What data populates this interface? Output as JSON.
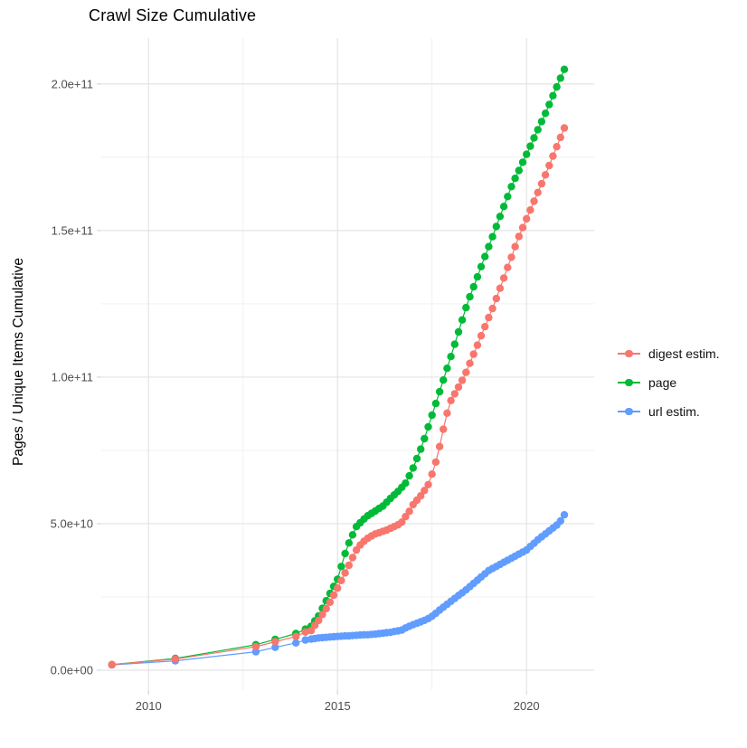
{
  "colors": {
    "grid_major": "#e4e4e4",
    "grid_minor": "#efefef",
    "tick": "#d4d4d4",
    "axis_text": "#4d4d4d",
    "title_text": "#000000",
    "background": "#ffffff"
  },
  "chart_data": {
    "type": "scatter-line",
    "title": "Crawl Size Cumulative",
    "xlabel": "",
    "ylabel": "Pages / Unique Items Cumulative",
    "legend_position": "right",
    "grid": true,
    "x_domain": [
      2008.75,
      2021.79
    ],
    "y_domain": [
      -6.8,
      215.7
    ],
    "y_unit_multiplier": 1000000000.0,
    "x_ticks": {
      "values": [
        2010,
        2015,
        2020
      ],
      "labels": [
        "2010",
        "2015",
        "2020"
      ]
    },
    "x_minor": [
      2012.5,
      2017.5
    ],
    "y_ticks": {
      "values": [
        0,
        50,
        100,
        150,
        200
      ],
      "labels": [
        "0.0e+00",
        "5.0e+10",
        "1.0e+11",
        "1.5e+11",
        "2.0e+11"
      ]
    },
    "y_minor": [
      25,
      75,
      125,
      175
    ],
    "series": [
      {
        "name": "digest estim.",
        "color": "#F8766D",
        "points": [
          [
            2009.03,
            1.9
          ],
          [
            2010.71,
            3.8
          ],
          [
            2012.84,
            8.0
          ],
          [
            2013.35,
            9.7
          ],
          [
            2013.9,
            11.5
          ],
          [
            2014.15,
            13.0
          ],
          [
            2014.3,
            13.5
          ],
          [
            2014.4,
            15.3
          ],
          [
            2014.5,
            17
          ],
          [
            2014.6,
            19
          ],
          [
            2014.7,
            21
          ],
          [
            2014.8,
            23.2
          ],
          [
            2014.9,
            25.6
          ],
          [
            2015.0,
            28
          ],
          [
            2015.1,
            30.6
          ],
          [
            2015.2,
            33.2
          ],
          [
            2015.3,
            35.8
          ],
          [
            2015.4,
            38.4
          ],
          [
            2015.5,
            41
          ],
          [
            2015.6,
            42.7
          ],
          [
            2015.7,
            44
          ],
          [
            2015.8,
            45
          ],
          [
            2015.9,
            45.8
          ],
          [
            2016.0,
            46.5
          ],
          [
            2016.1,
            46.9
          ],
          [
            2016.2,
            47.4
          ],
          [
            2016.3,
            47.8
          ],
          [
            2016.4,
            48.4
          ],
          [
            2016.5,
            49
          ],
          [
            2016.6,
            49.6
          ],
          [
            2016.7,
            50.5
          ],
          [
            2016.8,
            52.4
          ],
          [
            2016.9,
            54.2
          ],
          [
            2017.0,
            56.5
          ],
          [
            2017.1,
            58
          ],
          [
            2017.2,
            59.5
          ],
          [
            2017.3,
            61.3
          ],
          [
            2017.4,
            63.3
          ],
          [
            2017.5,
            66.9
          ],
          [
            2017.6,
            71
          ],
          [
            2017.7,
            76.3
          ],
          [
            2017.8,
            82.2
          ],
          [
            2017.9,
            87.7
          ],
          [
            2018.0,
            92
          ],
          [
            2018.1,
            94.3
          ],
          [
            2018.2,
            96.6
          ],
          [
            2018.3,
            98.9
          ],
          [
            2018.4,
            101.6
          ],
          [
            2018.5,
            104.7
          ],
          [
            2018.6,
            107.8
          ],
          [
            2018.7,
            110.9
          ],
          [
            2018.8,
            114.1
          ],
          [
            2018.9,
            117.2
          ],
          [
            2019.0,
            120.3
          ],
          [
            2019.1,
            123.4
          ],
          [
            2019.2,
            126.8
          ],
          [
            2019.3,
            130.3
          ],
          [
            2019.4,
            133.8
          ],
          [
            2019.5,
            137.4
          ],
          [
            2019.6,
            140.9
          ],
          [
            2019.7,
            144.5
          ],
          [
            2019.8,
            148
          ],
          [
            2019.9,
            151
          ],
          [
            2020.0,
            154
          ],
          [
            2020.1,
            157
          ],
          [
            2020.2,
            160
          ],
          [
            2020.3,
            163
          ],
          [
            2020.4,
            166
          ],
          [
            2020.5,
            169
          ],
          [
            2020.6,
            172.2
          ],
          [
            2020.7,
            175.4
          ],
          [
            2020.8,
            178.6
          ],
          [
            2020.9,
            181.8
          ],
          [
            2021.0,
            185
          ]
        ]
      },
      {
        "name": "page",
        "color": "#00BA38",
        "points": [
          [
            2009.03,
            1.9
          ],
          [
            2010.71,
            4.0
          ],
          [
            2012.84,
            8.7
          ],
          [
            2013.35,
            10.5
          ],
          [
            2013.9,
            12.5
          ],
          [
            2014.15,
            14.0
          ],
          [
            2014.3,
            15
          ],
          [
            2014.4,
            16.8
          ],
          [
            2014.5,
            18.5
          ],
          [
            2014.6,
            21.1
          ],
          [
            2014.7,
            23.7
          ],
          [
            2014.8,
            26.2
          ],
          [
            2014.9,
            28.6
          ],
          [
            2015.0,
            31
          ],
          [
            2015.1,
            35.4
          ],
          [
            2015.2,
            39.8
          ],
          [
            2015.3,
            43.4
          ],
          [
            2015.4,
            46.2
          ],
          [
            2015.5,
            49
          ],
          [
            2015.6,
            50.3
          ],
          [
            2015.7,
            51.6
          ],
          [
            2015.8,
            52.7
          ],
          [
            2015.9,
            53.5
          ],
          [
            2016.0,
            54.3
          ],
          [
            2016.1,
            55.2
          ],
          [
            2016.2,
            56
          ],
          [
            2016.3,
            57.3
          ],
          [
            2016.4,
            58.6
          ],
          [
            2016.5,
            59.8
          ],
          [
            2016.6,
            61
          ],
          [
            2016.7,
            62.4
          ],
          [
            2016.8,
            63.8
          ],
          [
            2016.9,
            66.3
          ],
          [
            2017.0,
            69
          ],
          [
            2017.1,
            72.2
          ],
          [
            2017.2,
            75.4
          ],
          [
            2017.3,
            79
          ],
          [
            2017.4,
            83
          ],
          [
            2017.5,
            87
          ],
          [
            2017.6,
            91
          ],
          [
            2017.7,
            95
          ],
          [
            2017.8,
            99
          ],
          [
            2017.9,
            103
          ],
          [
            2018.0,
            107
          ],
          [
            2018.1,
            111.2
          ],
          [
            2018.2,
            115.4
          ],
          [
            2018.3,
            119.5
          ],
          [
            2018.4,
            123.7
          ],
          [
            2018.5,
            127.4
          ],
          [
            2018.6,
            130.8
          ],
          [
            2018.7,
            134.2
          ],
          [
            2018.8,
            137.7
          ],
          [
            2018.9,
            141.1
          ],
          [
            2019.0,
            144.5
          ],
          [
            2019.1,
            147.9
          ],
          [
            2019.2,
            151.4
          ],
          [
            2019.3,
            154.8
          ],
          [
            2019.4,
            158.2
          ],
          [
            2019.5,
            161.6
          ],
          [
            2019.6,
            165
          ],
          [
            2019.7,
            167.8
          ],
          [
            2019.8,
            170.5
          ],
          [
            2019.9,
            173.3
          ],
          [
            2020.0,
            176
          ],
          [
            2020.1,
            178.8
          ],
          [
            2020.2,
            181.6
          ],
          [
            2020.3,
            184.4
          ],
          [
            2020.4,
            187.2
          ],
          [
            2020.5,
            190
          ],
          [
            2020.6,
            193
          ],
          [
            2020.7,
            196
          ],
          [
            2020.8,
            199
          ],
          [
            2020.9,
            202
          ],
          [
            2021.0,
            205
          ]
        ]
      },
      {
        "name": "url estim.",
        "color": "#619CFF",
        "points": [
          [
            2009.03,
            1.8
          ],
          [
            2010.71,
            3.2
          ],
          [
            2012.84,
            6.3
          ],
          [
            2013.35,
            7.8
          ],
          [
            2013.9,
            9.3
          ],
          [
            2014.15,
            10.3
          ],
          [
            2014.3,
            10.6
          ],
          [
            2014.4,
            10.8
          ],
          [
            2014.5,
            11
          ],
          [
            2014.6,
            11.1
          ],
          [
            2014.7,
            11.2
          ],
          [
            2014.8,
            11.3
          ],
          [
            2014.9,
            11.4
          ],
          [
            2015.0,
            11.5
          ],
          [
            2015.1,
            11.6
          ],
          [
            2015.2,
            11.7
          ],
          [
            2015.3,
            11.7
          ],
          [
            2015.4,
            11.8
          ],
          [
            2015.5,
            11.9
          ],
          [
            2015.6,
            12
          ],
          [
            2015.7,
            12.1
          ],
          [
            2015.8,
            12.1
          ],
          [
            2015.9,
            12.2
          ],
          [
            2016.0,
            12.3
          ],
          [
            2016.1,
            12.5
          ],
          [
            2016.2,
            12.6
          ],
          [
            2016.3,
            12.8
          ],
          [
            2016.4,
            12.9
          ],
          [
            2016.5,
            13.2
          ],
          [
            2016.6,
            13.4
          ],
          [
            2016.7,
            13.7
          ],
          [
            2016.8,
            14.4
          ],
          [
            2016.9,
            15
          ],
          [
            2017.0,
            15.5
          ],
          [
            2017.1,
            16
          ],
          [
            2017.2,
            16.5
          ],
          [
            2017.3,
            17
          ],
          [
            2017.4,
            17.6
          ],
          [
            2017.5,
            18.4
          ],
          [
            2017.6,
            19.4
          ],
          [
            2017.7,
            20.5
          ],
          [
            2017.8,
            21.5
          ],
          [
            2017.9,
            22.5
          ],
          [
            2018.0,
            23.5
          ],
          [
            2018.1,
            24.5
          ],
          [
            2018.2,
            25.5
          ],
          [
            2018.3,
            26.4
          ],
          [
            2018.4,
            27.4
          ],
          [
            2018.5,
            28.5
          ],
          [
            2018.6,
            29.6
          ],
          [
            2018.7,
            30.7
          ],
          [
            2018.8,
            31.8
          ],
          [
            2018.9,
            32.9
          ],
          [
            2019.0,
            34
          ],
          [
            2019.1,
            34.7
          ],
          [
            2019.2,
            35.4
          ],
          [
            2019.3,
            36.1
          ],
          [
            2019.4,
            36.8
          ],
          [
            2019.5,
            37.5
          ],
          [
            2019.6,
            38.2
          ],
          [
            2019.7,
            38.9
          ],
          [
            2019.8,
            39.6
          ],
          [
            2019.9,
            40.3
          ],
          [
            2020.0,
            41
          ],
          [
            2020.1,
            42.2
          ],
          [
            2020.2,
            43.3
          ],
          [
            2020.3,
            44.5
          ],
          [
            2020.4,
            45.5
          ],
          [
            2020.5,
            46.5
          ],
          [
            2020.6,
            47.5
          ],
          [
            2020.7,
            48.5
          ],
          [
            2020.8,
            49.5
          ],
          [
            2020.9,
            50.9
          ],
          [
            2021.0,
            53
          ]
        ]
      }
    ]
  }
}
